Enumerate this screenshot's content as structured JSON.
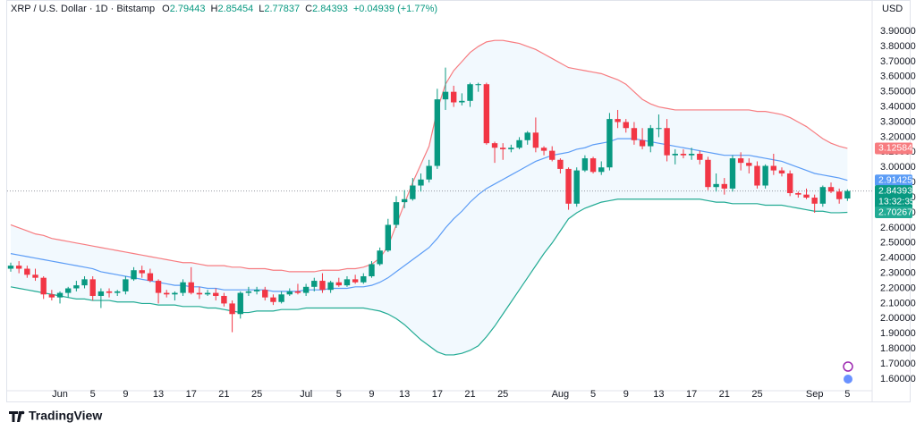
{
  "header": {
    "title": "XRP / U.S. Dollar · 1D · Bitstamp",
    "ohlc_labels": [
      "O",
      "H",
      "L",
      "C"
    ],
    "change": "+0.04939 (+1.77%)",
    "currency": "USD",
    "countdown": "13:32:35",
    "brand": "TradingView"
  },
  "chart_data": {
    "type": "candlestick",
    "x": [
      "May 26",
      "May 27",
      "May 28",
      "May 29",
      "May 30",
      "May 31",
      "Jun 1",
      "Jun 2",
      "Jun 3",
      "Jun 4",
      "Jun 5",
      "Jun 6",
      "Jun 7",
      "Jun 8",
      "Jun 9",
      "Jun 10",
      "Jun 11",
      "Jun 12",
      "Jun 13",
      "Jun 14",
      "Jun 15",
      "Jun 16",
      "Jun 17",
      "Jun 18",
      "Jun 19",
      "Jun 20",
      "Jun 21",
      "Jun 22",
      "Jun 23",
      "Jun 24",
      "Jun 25",
      "Jun 26",
      "Jun 27",
      "Jun 28",
      "Jun 29",
      "Jun 30",
      "Jul 1",
      "Jul 2",
      "Jul 3",
      "Jul 4",
      "Jul 5",
      "Jul 6",
      "Jul 7",
      "Jul 8",
      "Jul 9",
      "Jul 10",
      "Jul 11",
      "Jul 12",
      "Jul 13",
      "Jul 14",
      "Jul 15",
      "Jul 16",
      "Jul 17",
      "Jul 18",
      "Jul 19",
      "Jul 20",
      "Jul 21",
      "Jul 22",
      "Jul 23",
      "Jul 24",
      "Jul 25",
      "Jul 26",
      "Jul 27",
      "Jul 28",
      "Jul 29",
      "Jul 30",
      "Jul 31",
      "Aug 1",
      "Aug 2",
      "Aug 3",
      "Aug 4",
      "Aug 5",
      "Aug 6",
      "Aug 7",
      "Aug 8",
      "Aug 9",
      "Aug 10",
      "Aug 11",
      "Aug 12",
      "Aug 13",
      "Aug 14",
      "Aug 15",
      "Aug 16",
      "Aug 17",
      "Aug 18",
      "Aug 19",
      "Aug 20",
      "Aug 21",
      "Aug 22",
      "Aug 23",
      "Aug 24",
      "Aug 25",
      "Aug 26",
      "Aug 27",
      "Aug 28",
      "Aug 29",
      "Aug 30",
      "Aug 31",
      "Sep 1",
      "Sep 2",
      "Sep 3",
      "Sep 4",
      "Sep 5"
    ],
    "open": [
      2.33,
      2.35,
      2.33,
      2.29,
      2.27,
      2.16,
      2.14,
      2.17,
      2.2,
      2.22,
      2.26,
      2.15,
      2.18,
      2.17,
      2.18,
      2.26,
      2.32,
      2.3,
      2.25,
      2.17,
      2.16,
      2.17,
      2.24,
      2.17,
      2.16,
      2.17,
      2.15,
      2.1,
      2.03,
      2.17,
      2.18,
      2.19,
      2.14,
      2.11,
      2.16,
      2.18,
      2.17,
      2.21,
      2.25,
      2.19,
      2.24,
      2.22,
      2.26,
      2.24,
      2.28,
      2.36,
      2.45,
      2.62,
      2.77,
      2.79,
      2.88,
      2.92,
      3.01,
      3.45,
      3.5,
      3.43,
      3.44,
      3.55,
      3.55,
      3.16,
      3.13,
      3.12,
      3.13,
      3.18,
      3.23,
      3.13,
      3.11,
      3.05,
      2.99,
      2.76,
      2.98,
      3.06,
      2.97,
      3.0,
      3.32,
      3.3,
      3.26,
      3.18,
      3.14,
      3.26,
      3.26,
      3.08,
      3.09,
      3.08,
      3.09,
      3.05,
      2.87,
      2.89,
      2.86,
      3.06,
      3.03,
      3.01,
      2.88,
      3.01,
      2.98,
      2.96,
      2.83,
      2.82,
      2.8,
      2.76,
      2.87,
      2.84,
      2.79443
    ],
    "high": [
      2.37,
      2.38,
      2.35,
      2.33,
      2.28,
      2.19,
      2.18,
      2.21,
      2.25,
      2.28,
      2.28,
      2.2,
      2.2,
      2.19,
      2.28,
      2.34,
      2.35,
      2.33,
      2.26,
      2.19,
      2.18,
      2.26,
      2.34,
      2.21,
      2.19,
      2.2,
      2.17,
      2.12,
      2.18,
      2.21,
      2.21,
      2.21,
      2.16,
      2.18,
      2.2,
      2.23,
      2.23,
      2.27,
      2.3,
      2.25,
      2.27,
      2.28,
      2.29,
      2.3,
      2.38,
      2.47,
      2.66,
      2.81,
      2.85,
      2.93,
      2.96,
      3.05,
      3.52,
      3.66,
      3.54,
      3.49,
      3.56,
      3.56,
      3.56,
      3.17,
      3.16,
      3.15,
      3.2,
      3.24,
      3.33,
      3.14,
      3.14,
      3.06,
      3.0,
      3.0,
      3.08,
      3.07,
      3.04,
      3.36,
      3.38,
      3.32,
      3.3,
      3.26,
      3.28,
      3.35,
      3.32,
      3.12,
      3.12,
      3.13,
      3.11,
      3.07,
      2.96,
      2.93,
      3.08,
      3.1,
      3.06,
      3.04,
      3.02,
      3.09,
      3.0,
      2.98,
      2.84,
      2.86,
      2.82,
      2.88,
      2.9,
      2.86,
      2.85454
    ],
    "low": [
      2.31,
      2.3,
      2.27,
      2.25,
      2.13,
      2.12,
      2.1,
      2.14,
      2.18,
      2.2,
      2.12,
      2.07,
      2.14,
      2.15,
      2.16,
      2.25,
      2.27,
      2.24,
      2.1,
      2.14,
      2.12,
      2.15,
      2.16,
      2.13,
      2.15,
      2.12,
      2.08,
      1.91,
      2.0,
      2.15,
      2.16,
      2.12,
      2.09,
      2.1,
      2.15,
      2.16,
      2.15,
      2.18,
      2.17,
      2.17,
      2.21,
      2.21,
      2.23,
      2.23,
      2.27,
      2.35,
      2.44,
      2.6,
      2.73,
      2.78,
      2.84,
      2.9,
      2.99,
      3.38,
      3.4,
      3.41,
      3.4,
      3.5,
      3.15,
      3.03,
      3.05,
      3.1,
      3.12,
      3.15,
      3.1,
      3.08,
      3.04,
      2.96,
      2.72,
      2.74,
      2.97,
      2.96,
      2.95,
      2.98,
      3.26,
      3.23,
      3.15,
      3.12,
      3.1,
      3.2,
      3.04,
      3.02,
      3.06,
      3.05,
      3.02,
      2.85,
      2.84,
      2.82,
      2.84,
      2.98,
      2.96,
      2.86,
      2.86,
      2.95,
      2.94,
      2.81,
      2.8,
      2.79,
      2.7,
      2.74,
      2.83,
      2.76,
      2.77837
    ],
    "close": [
      2.35,
      2.33,
      2.29,
      2.27,
      2.16,
      2.14,
      2.17,
      2.2,
      2.22,
      2.26,
      2.15,
      2.18,
      2.17,
      2.18,
      2.26,
      2.32,
      2.3,
      2.25,
      2.17,
      2.16,
      2.17,
      2.24,
      2.17,
      2.16,
      2.17,
      2.15,
      2.1,
      2.03,
      2.17,
      2.18,
      2.19,
      2.14,
      2.11,
      2.16,
      2.18,
      2.17,
      2.21,
      2.25,
      2.19,
      2.24,
      2.22,
      2.26,
      2.24,
      2.28,
      2.36,
      2.45,
      2.62,
      2.77,
      2.79,
      2.88,
      2.92,
      3.01,
      3.45,
      3.5,
      3.43,
      3.44,
      3.55,
      3.55,
      3.16,
      3.13,
      3.12,
      3.13,
      3.18,
      3.23,
      3.13,
      3.11,
      3.05,
      2.99,
      2.76,
      2.98,
      3.06,
      2.97,
      3.0,
      3.32,
      3.3,
      3.26,
      3.18,
      3.14,
      3.26,
      3.26,
      3.08,
      3.09,
      3.08,
      3.09,
      3.05,
      2.87,
      2.89,
      2.86,
      3.06,
      3.03,
      3.01,
      2.88,
      3.01,
      2.98,
      2.96,
      2.83,
      2.82,
      2.8,
      2.76,
      2.87,
      2.84,
      2.79,
      2.84393
    ],
    "up_color": "#089981",
    "down_color": "#f23645",
    "overlays": [
      {
        "color": "#f77c80",
        "values": [
          2.62,
          2.6,
          2.58,
          2.56,
          2.55,
          2.53,
          2.52,
          2.51,
          2.5,
          2.49,
          2.48,
          2.47,
          2.46,
          2.45,
          2.44,
          2.43,
          2.42,
          2.41,
          2.4,
          2.39,
          2.38,
          2.37,
          2.37,
          2.36,
          2.35,
          2.35,
          2.35,
          2.34,
          2.34,
          2.33,
          2.33,
          2.33,
          2.32,
          2.32,
          2.31,
          2.31,
          2.31,
          2.31,
          2.32,
          2.32,
          2.32,
          2.33,
          2.33,
          2.34,
          2.36,
          2.4,
          2.48,
          2.62,
          2.76,
          2.9,
          3.02,
          3.14,
          3.38,
          3.55,
          3.64,
          3.7,
          3.76,
          3.8,
          3.83,
          3.84,
          3.84,
          3.83,
          3.82,
          3.8,
          3.78,
          3.75,
          3.72,
          3.69,
          3.66,
          3.65,
          3.64,
          3.63,
          3.62,
          3.6,
          3.58,
          3.55,
          3.5,
          3.45,
          3.42,
          3.4,
          3.39,
          3.38,
          3.38,
          3.38,
          3.38,
          3.38,
          3.38,
          3.38,
          3.38,
          3.38,
          3.38,
          3.37,
          3.37,
          3.36,
          3.35,
          3.33,
          3.3,
          3.27,
          3.23,
          3.19,
          3.16,
          3.14,
          3.12584
        ]
      },
      {
        "color": "#5b9cf6",
        "values": [
          2.43,
          2.42,
          2.41,
          2.4,
          2.39,
          2.38,
          2.37,
          2.36,
          2.35,
          2.34,
          2.33,
          2.31,
          2.3,
          2.29,
          2.28,
          2.27,
          2.26,
          2.25,
          2.24,
          2.23,
          2.22,
          2.22,
          2.21,
          2.21,
          2.2,
          2.2,
          2.19,
          2.19,
          2.19,
          2.19,
          2.19,
          2.19,
          2.18,
          2.18,
          2.18,
          2.18,
          2.19,
          2.19,
          2.19,
          2.2,
          2.2,
          2.2,
          2.21,
          2.21,
          2.22,
          2.24,
          2.27,
          2.31,
          2.35,
          2.39,
          2.43,
          2.47,
          2.53,
          2.6,
          2.66,
          2.71,
          2.77,
          2.82,
          2.86,
          2.89,
          2.92,
          2.95,
          2.98,
          3.01,
          3.04,
          3.06,
          3.08,
          3.09,
          3.1,
          3.12,
          3.13,
          3.15,
          3.16,
          3.17,
          3.19,
          3.19,
          3.19,
          3.18,
          3.17,
          3.16,
          3.15,
          3.14,
          3.13,
          3.12,
          3.11,
          3.1,
          3.09,
          3.08,
          3.08,
          3.08,
          3.08,
          3.07,
          3.06,
          3.05,
          3.04,
          3.02,
          3.0,
          2.98,
          2.96,
          2.95,
          2.94,
          2.93,
          2.91425
        ]
      },
      {
        "color": "#22ab94",
        "values": [
          2.21,
          2.2,
          2.19,
          2.18,
          2.17,
          2.16,
          2.15,
          2.14,
          2.13,
          2.13,
          2.12,
          2.12,
          2.12,
          2.11,
          2.11,
          2.11,
          2.1,
          2.1,
          2.09,
          2.09,
          2.09,
          2.08,
          2.08,
          2.08,
          2.07,
          2.07,
          2.06,
          2.05,
          2.04,
          2.04,
          2.05,
          2.05,
          2.05,
          2.06,
          2.06,
          2.06,
          2.07,
          2.07,
          2.07,
          2.07,
          2.07,
          2.07,
          2.07,
          2.07,
          2.06,
          2.05,
          2.03,
          2.0,
          1.96,
          1.91,
          1.86,
          1.82,
          1.78,
          1.76,
          1.76,
          1.77,
          1.79,
          1.82,
          1.88,
          1.95,
          2.03,
          2.11,
          2.19,
          2.27,
          2.35,
          2.43,
          2.5,
          2.58,
          2.66,
          2.7,
          2.73,
          2.75,
          2.77,
          2.78,
          2.79,
          2.79,
          2.79,
          2.79,
          2.79,
          2.79,
          2.79,
          2.79,
          2.79,
          2.79,
          2.79,
          2.78,
          2.77,
          2.77,
          2.76,
          2.76,
          2.76,
          2.76,
          2.75,
          2.75,
          2.75,
          2.74,
          2.73,
          2.72,
          2.71,
          2.71,
          2.7,
          2.7,
          2.70267
        ]
      }
    ],
    "band_fill": "#2196f3",
    "ylim": [
      1.523,
      3.977
    ],
    "yticks": [
      {
        "value": 1.6,
        "label": "1.60000"
      },
      {
        "value": 1.7,
        "label": "1.70000"
      },
      {
        "value": 1.8,
        "label": "1.80000"
      },
      {
        "value": 1.9,
        "label": "1.90000"
      },
      {
        "value": 2.0,
        "label": "2.00000"
      },
      {
        "value": 2.1,
        "label": "2.10000"
      },
      {
        "value": 2.2,
        "label": "2.20000"
      },
      {
        "value": 2.3,
        "label": "2.30000"
      },
      {
        "value": 2.4,
        "label": "2.40000"
      },
      {
        "value": 2.5,
        "label": "2.50000"
      },
      {
        "value": 2.6,
        "label": "2.60000"
      },
      {
        "value": 2.7,
        "label": "2.70000"
      },
      {
        "value": 2.8,
        "label": "2.80000"
      },
      {
        "value": 2.9,
        "label": "2.90000"
      },
      {
        "value": 3.0,
        "label": "3.00000"
      },
      {
        "value": 3.1,
        "label": "3.10000"
      },
      {
        "value": 3.2,
        "label": "3.20000"
      },
      {
        "value": 3.3,
        "label": "3.30000"
      },
      {
        "value": 3.4,
        "label": "3.40000"
      },
      {
        "value": 3.5,
        "label": "3.50000"
      },
      {
        "value": 3.6,
        "label": "3.60000"
      },
      {
        "value": 3.7,
        "label": "3.70000"
      },
      {
        "value": 3.8,
        "label": "3.80000"
      },
      {
        "value": 3.9,
        "label": "3.90000"
      }
    ],
    "xticks": [
      {
        "value": "Jun 1",
        "label": "Jun"
      },
      {
        "value": "Jun 5",
        "label": "5"
      },
      {
        "value": "Jun 9",
        "label": "9"
      },
      {
        "value": "Jun 13",
        "label": "13"
      },
      {
        "value": "Jun 17",
        "label": "17"
      },
      {
        "value": "Jun 21",
        "label": "21"
      },
      {
        "value": "Jun 25",
        "label": "25"
      },
      {
        "value": "Jul 1",
        "label": "Jul"
      },
      {
        "value": "Jul 5",
        "label": "5"
      },
      {
        "value": "Jul 9",
        "label": "9"
      },
      {
        "value": "Jul 13",
        "label": "13"
      },
      {
        "value": "Jul 17",
        "label": "17"
      },
      {
        "value": "Jul 21",
        "label": "21"
      },
      {
        "value": "Jul 25",
        "label": "25"
      },
      {
        "value": "Aug 1",
        "label": "Aug"
      },
      {
        "value": "Aug 5",
        "label": "5"
      },
      {
        "value": "Aug 9",
        "label": "9"
      },
      {
        "value": "Aug 13",
        "label": "13"
      },
      {
        "value": "Aug 17",
        "label": "17"
      },
      {
        "value": "Aug 21",
        "label": "21"
      },
      {
        "value": "Aug 25",
        "label": "25"
      },
      {
        "value": "Sep 1",
        "label": "Sep"
      },
      {
        "value": "Sep 5",
        "label": "5"
      }
    ],
    "grid": false
  }
}
